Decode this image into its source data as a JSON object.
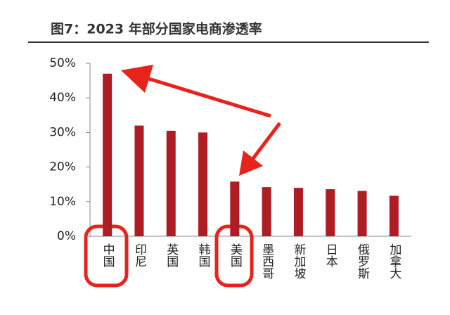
{
  "chart_data": {
    "type": "bar",
    "title": "图7：2023 年部分国家电商渗透率",
    "categories": [
      "中国",
      "印尼",
      "英国",
      "韩国",
      "美国",
      "墨西哥",
      "新加坡",
      "日本",
      "俄罗斯",
      "加拿大"
    ],
    "values": [
      47,
      32,
      30.5,
      30,
      15.8,
      14.2,
      14,
      13.6,
      13.1,
      11.7
    ],
    "color": "#b01c24",
    "ylim": [
      0,
      50
    ],
    "yticks": [
      {
        "value": 0,
        "label": "0%"
      },
      {
        "value": 10,
        "label": "10%"
      },
      {
        "value": 20,
        "label": "20%"
      },
      {
        "value": 30,
        "label": "30%"
      },
      {
        "value": 40,
        "label": "40%"
      },
      {
        "value": 50,
        "label": "50%"
      }
    ],
    "grid": false
  }
}
